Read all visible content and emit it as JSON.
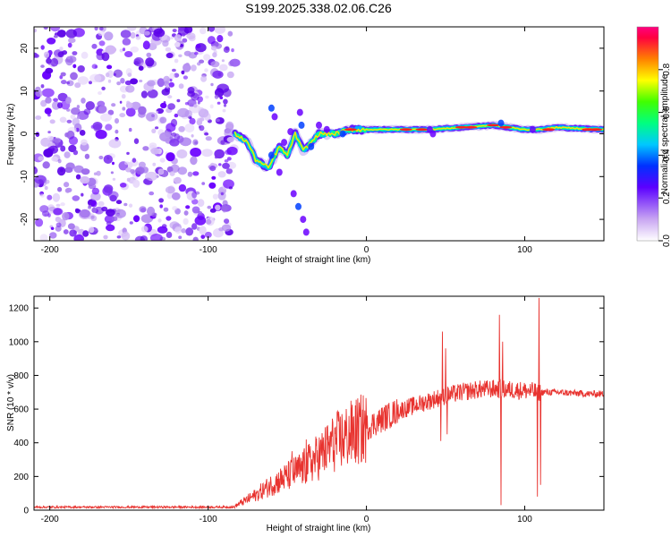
{
  "title": "S199.2025.338.02.06.C26",
  "chart_data": [
    {
      "type": "heatmap",
      "name": "spectrogram",
      "xlabel": "Height of straight line (km)",
      "ylabel": "Frequency (Hz)",
      "xlim": [
        -210,
        150
      ],
      "ylim": [
        -25,
        25
      ],
      "xticks": [
        -200,
        -100,
        0,
        100
      ],
      "yticks": [
        -20,
        -10,
        0,
        10,
        20
      ],
      "noise_region_x": [
        -210,
        -83
      ],
      "main_signal": {
        "description_points_x": [
          -83,
          -75,
          -70,
          -62,
          -55,
          -50,
          -45,
          -40,
          -30,
          -20,
          -10,
          0,
          20,
          40,
          60,
          80,
          90,
          100,
          110,
          120,
          150
        ],
        "freq_hz": [
          0,
          -2,
          -6,
          -8,
          -3,
          -5,
          0,
          -4,
          0,
          0,
          1,
          1,
          1,
          1,
          1.5,
          2,
          1.5,
          1,
          1,
          1.5,
          1
        ]
      },
      "colorbar": {
        "label": "Normalized spectral amplitude",
        "range": [
          0,
          1
        ],
        "ticks": [
          0.0,
          0.2,
          0.4,
          0.6,
          0.8
        ],
        "tick_labels": [
          "0.0",
          "0.2",
          "0.4",
          "0.6",
          "0.8"
        ]
      }
    },
    {
      "type": "line",
      "name": "snr",
      "xlabel": "Height of straight line (km)",
      "ylabel": "SNR (10 * v/v)",
      "xlim": [
        -210,
        150
      ],
      "ylim": [
        0,
        1270
      ],
      "xticks": [
        -200,
        -100,
        0,
        100
      ],
      "yticks": [
        0,
        200,
        400,
        600,
        800,
        1000,
        1200
      ],
      "color": "#e8332f",
      "envelope": {
        "x": [
          -210,
          -84,
          -80,
          -70,
          -60,
          -50,
          -40,
          -30,
          -20,
          -10,
          0,
          10,
          20,
          30,
          40,
          50,
          60,
          70,
          80,
          90,
          100,
          110,
          120,
          130,
          140,
          150
        ],
        "y": [
          18,
          18,
          40,
          90,
          150,
          200,
          250,
          320,
          400,
          450,
          490,
          540,
          590,
          620,
          650,
          680,
          700,
          715,
          720,
          715,
          710,
          700,
          700,
          695,
          690,
          690
        ]
      },
      "spikes": [
        {
          "x": -47,
          "y": 350
        },
        {
          "x": -38,
          "y": 420
        },
        {
          "x": -30,
          "y": 380
        },
        {
          "x": -22,
          "y": 470
        },
        {
          "x": 12,
          "y": 620
        },
        {
          "x": 48,
          "y": 1060
        },
        {
          "x": 50,
          "y": 960
        },
        {
          "x": 84,
          "y": 1160
        },
        {
          "x": 86,
          "y": 1000
        },
        {
          "x": 108,
          "y": 1000
        },
        {
          "x": 109,
          "y": 1260
        }
      ],
      "dips": [
        {
          "x": 47,
          "y": 410
        },
        {
          "x": 51,
          "y": 450
        },
        {
          "x": 85,
          "y": 30
        },
        {
          "x": 108,
          "y": 80
        },
        {
          "x": 110,
          "y": 150
        }
      ]
    }
  ]
}
